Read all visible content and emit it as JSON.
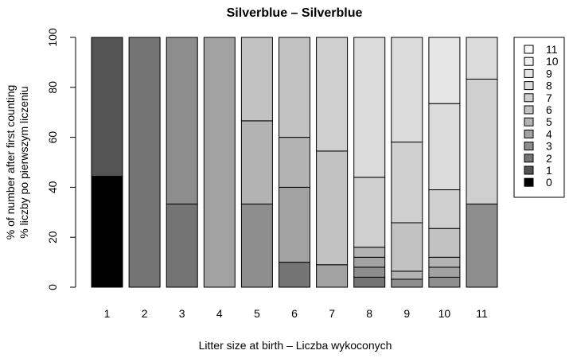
{
  "chart_data": {
    "type": "bar",
    "stacked": true,
    "title": "Silverblue – Silverblue",
    "xlabel": "Litter size at birth – Liczba wykoconych",
    "ylabel_lines": [
      "% of number after first counting",
      "% liczby po pierwszym liczeniu"
    ],
    "ylim": [
      0,
      100
    ],
    "yticks": [
      "0",
      "20",
      "40",
      "60",
      "80",
      "100"
    ],
    "categories": [
      "1",
      "2",
      "3",
      "4",
      "5",
      "6",
      "7",
      "8",
      "9",
      "10",
      "11"
    ],
    "legend_position": "right",
    "series": [
      {
        "name": "0",
        "color": "#000000",
        "values": [
          44.4,
          0,
          0,
          0,
          0,
          0,
          0,
          0,
          0,
          0,
          0
        ]
      },
      {
        "name": "1",
        "color": "#545454",
        "values": [
          55.6,
          0,
          0,
          0,
          0,
          0,
          0,
          0,
          0,
          0,
          0
        ]
      },
      {
        "name": "2",
        "color": "#747474",
        "values": [
          0,
          100,
          33.3,
          0,
          0,
          10,
          0,
          4,
          0,
          0,
          0
        ]
      },
      {
        "name": "3",
        "color": "#8d8d8d",
        "values": [
          0,
          0,
          66.7,
          0,
          33.3,
          0,
          0,
          4,
          3.2,
          4,
          33.3
        ]
      },
      {
        "name": "4",
        "color": "#a2a2a2",
        "values": [
          0,
          0,
          0,
          100,
          0,
          30,
          9,
          4,
          0,
          4,
          0
        ]
      },
      {
        "name": "5",
        "color": "#b3b3b3",
        "values": [
          0,
          0,
          0,
          0,
          33.3,
          20,
          0,
          4,
          3.2,
          4,
          0
        ]
      },
      {
        "name": "6",
        "color": "#c2c2c2",
        "values": [
          0,
          0,
          0,
          0,
          33.4,
          40,
          45.5,
          0,
          19.4,
          11.5,
          0
        ]
      },
      {
        "name": "7",
        "color": "#cfcfcf",
        "values": [
          0,
          0,
          0,
          0,
          0,
          0,
          45.5,
          28,
          32.3,
          15.5,
          50
        ]
      },
      {
        "name": "8",
        "color": "#dbdbdb",
        "values": [
          0,
          0,
          0,
          0,
          0,
          0,
          0,
          56,
          41.9,
          34.5,
          16.7
        ]
      },
      {
        "name": "9",
        "color": "#e6e6e6",
        "values": [
          0,
          0,
          0,
          0,
          0,
          0,
          0,
          0,
          0,
          26.5,
          0
        ]
      },
      {
        "name": "10",
        "color": "#f0f0f0",
        "values": [
          0,
          0,
          0,
          0,
          0,
          0,
          0,
          0,
          0,
          0,
          0
        ]
      },
      {
        "name": "11",
        "color": "#fafafa",
        "values": [
          0,
          0,
          0,
          0,
          0,
          0,
          0,
          0,
          0,
          0,
          0
        ]
      }
    ]
  }
}
